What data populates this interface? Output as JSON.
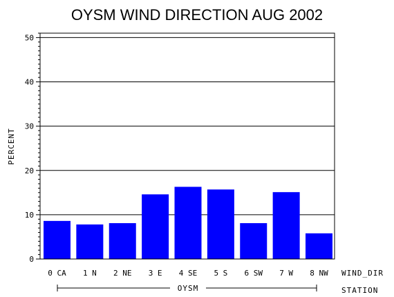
{
  "chart_data": {
    "type": "bar",
    "title": "OYSM WIND DIRECTION AUG 2002",
    "ylabel": "PERCENT",
    "xlabel": "WIND_DIR",
    "group_axis_label": "STATION",
    "group_name": "OYSM",
    "categories": [
      "0 CA",
      "1 N",
      "2 NE",
      "3 E",
      "4 SE",
      "5 S",
      "6 SW",
      "7 W",
      "8 NW"
    ],
    "values": [
      8.6,
      7.8,
      8.1,
      14.6,
      16.3,
      15.7,
      8.1,
      15.1,
      5.8
    ],
    "ylim": [
      0,
      51
    ],
    "yticks": [
      0,
      10,
      20,
      30,
      40,
      50
    ],
    "grid": true,
    "bar_color": "#0000ff"
  }
}
